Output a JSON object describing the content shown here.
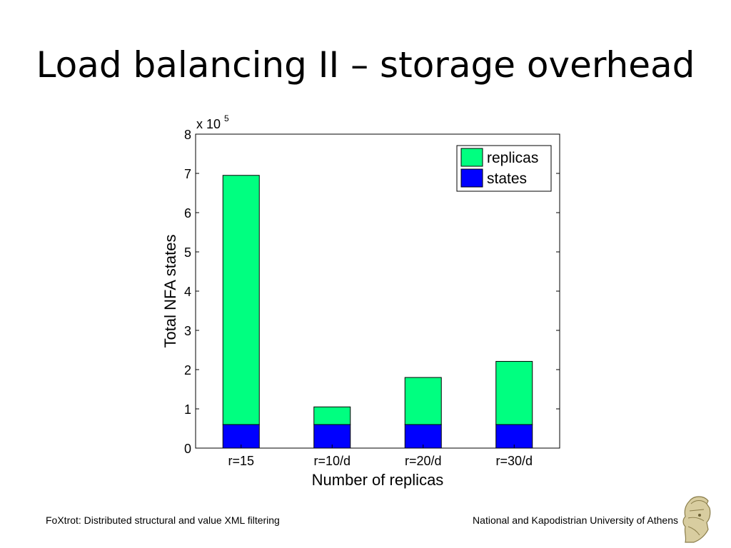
{
  "slide": {
    "title": "Load balancing II – storage overhead",
    "footer_left": "FoXtrot: Distributed structural and value XML filtering",
    "footer_right": "National and Kapodistrian University of Athens",
    "logo_icon": "athena-helmet-logo"
  },
  "chart_data": {
    "type": "bar",
    "stacked": true,
    "categories": [
      "r=15",
      "r=10/d",
      "r=20/d",
      "r=30/d"
    ],
    "series": [
      {
        "name": "states",
        "values": [
          60000,
          60000,
          60000,
          60000
        ],
        "color": "#0000ff"
      },
      {
        "name": "replicas",
        "values": [
          635000,
          45000,
          120000,
          161000
        ],
        "color": "#00ff80"
      }
    ],
    "title": "",
    "xlabel": "Number of replicas",
    "ylabel": "Total NFA states",
    "ylim": [
      0,
      800000
    ],
    "yticks": [
      0,
      1,
      2,
      3,
      4,
      5,
      6,
      7,
      8
    ],
    "y_multiplier_base": "x 10",
    "y_multiplier_exp": "5",
    "grid": false,
    "legend": {
      "placement": "top-right",
      "entries": [
        "replicas",
        "states"
      ]
    }
  }
}
